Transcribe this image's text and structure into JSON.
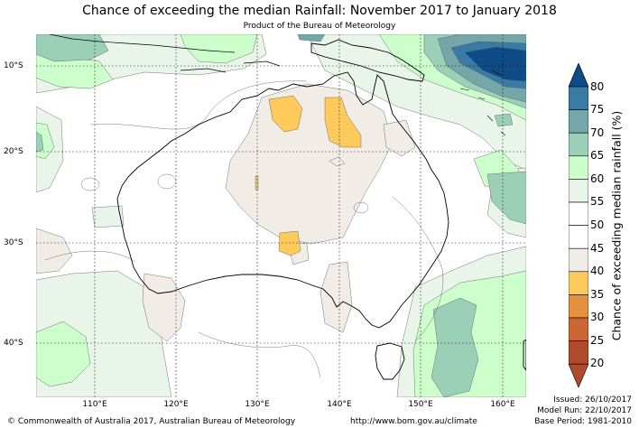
{
  "title": "Chance of exceeding the median Rainfall: November 2017 to January 2018",
  "subtitle": "Product of the Bureau of Meteorology",
  "map": {
    "lat_labels": [
      "10°S",
      "20°S",
      "30°S",
      "40°S"
    ],
    "lon_labels": [
      "110°E",
      "120°E",
      "130°E",
      "140°E",
      "150°E",
      "160°E"
    ]
  },
  "legend": {
    "title": "Chance of exceeding median rainfall (%)",
    "levels": [
      "80",
      "75",
      "70",
      "65",
      "60",
      "55",
      "50",
      "45",
      "40",
      "35",
      "30",
      "25",
      "20"
    ],
    "colors": {
      "above_80": "#0f4c87",
      "75_80": "#3a7ba5",
      "70_75": "#74a6aa",
      "65_70": "#9ccfb7",
      "60_65": "#ccffcc",
      "55_60": "#e8f5e8",
      "50_55": "#ffffff",
      "45_50": "#ffffff",
      "40_45": "#f1ede6",
      "35_40": "#ffca5c",
      "30_35": "#e3913e",
      "25_30": "#cc6633",
      "below_20": "#b04a2c"
    }
  },
  "footer": {
    "copyright": "© Commonwealth of Australia 2017, Australian Bureau of Meteorology",
    "url": "http://www.bom.gov.au/climate",
    "issued": "Issued: 26/10/2017",
    "model_run": "Model Run: 22/10/2017",
    "base_period": "Base Period: 1981-2010"
  }
}
